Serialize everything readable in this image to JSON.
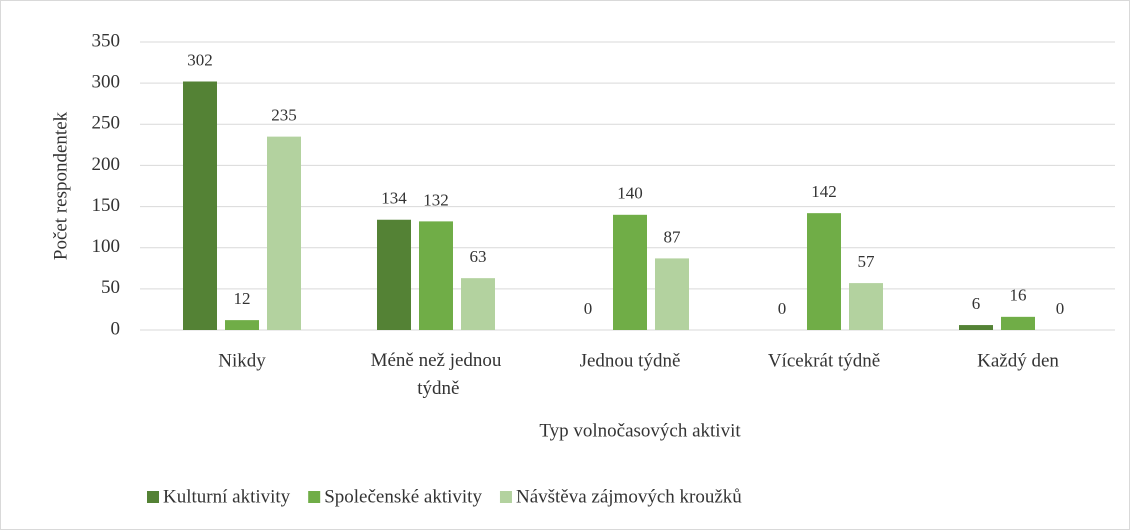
{
  "chart_data": {
    "type": "bar",
    "x_label": "Typ volnočasových aktivit",
    "y_label": "Počet respondentek",
    "categories": [
      "Nikdy",
      "Méně než jednou týdně",
      "Jednou týdně",
      "Vícekrát týdně",
      "Každý den"
    ],
    "series": [
      {
        "name": "Kulturní aktivity",
        "color": "#548235",
        "values": [
          302,
          134,
          0,
          0,
          6
        ]
      },
      {
        "name": "Společenské aktivity",
        "color": "#70ad47",
        "values": [
          12,
          132,
          140,
          142,
          16
        ]
      },
      {
        "name": "Návštěva zájmových kroužků",
        "color": "#b3d29f",
        "values": [
          235,
          63,
          87,
          57,
          0
        ]
      }
    ],
    "ylim": [
      0,
      350
    ],
    "yticks": [
      0,
      50,
      100,
      150,
      200,
      250,
      300,
      350
    ],
    "grid": true,
    "legend": "bottom",
    "data_labels": true
  }
}
